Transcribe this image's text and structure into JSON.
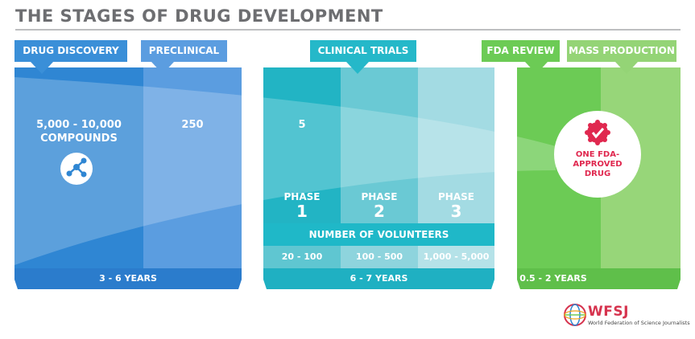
{
  "title": "THE STAGES OF DRUG DEVELOPMENT",
  "stages": {
    "discovery": "DRUG DISCOVERY",
    "preclinical": "PRECLINICAL",
    "clinical": "CLINICAL TRIALS",
    "fda": "FDA REVIEW",
    "mass": "MASS PRODUCTION"
  },
  "counts": {
    "discovery_line1": "5,000 - 10,000",
    "discovery_line2": "COMPOUNDS",
    "preclinical": "250",
    "clinical": "5"
  },
  "phases": [
    {
      "label": "PHASE",
      "number": "1",
      "volunteers": "20 - 100"
    },
    {
      "label": "PHASE",
      "number": "2",
      "volunteers": "100 - 500"
    },
    {
      "label": "PHASE",
      "number": "3",
      "volunteers": "1,000 - 5,000"
    }
  ],
  "volunteers_label": "NUMBER OF VOLUNTEERS",
  "durations": {
    "discovery_preclinical": "3 - 6 YEARS",
    "clinical": "6 - 7 YEARS",
    "fda": "0.5 - 2 YEARS"
  },
  "result": {
    "line1": "ONE FDA-",
    "line2": "APPROVED",
    "line3": "DRUG"
  },
  "logo": {
    "name": "WFSJ",
    "tagline": "World Federation of Science Journalists"
  },
  "colors": {
    "discovery": "#2f86d3",
    "preclinical": "#5b9de0",
    "clinical": "#2bb4c6",
    "fda": "#72cb58",
    "mass": "#9bd47a",
    "accent": "#e0284f"
  }
}
